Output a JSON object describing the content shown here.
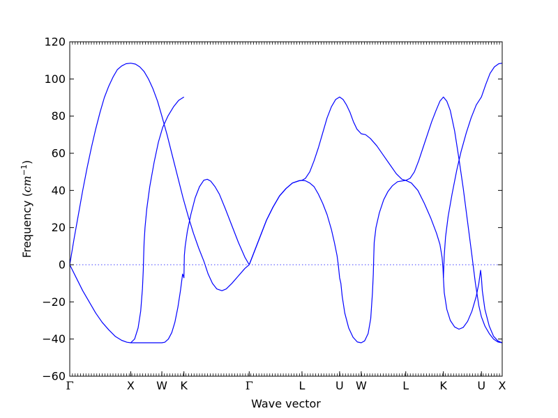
{
  "chart_data": {
    "type": "line",
    "title": "",
    "xlabel": "Wave vector",
    "ylabel": {
      "prefix": "Frequency (",
      "unit": "cm",
      "exponent": "−1",
      "suffix": ")"
    },
    "ylim": [
      -60,
      120
    ],
    "xlim": [
      0,
      1
    ],
    "yticks": [
      -60,
      -40,
      -20,
      0,
      20,
      40,
      60,
      80,
      100,
      120
    ],
    "ytick_labels": [
      "−60",
      "−40",
      "−20",
      "0",
      "20",
      "40",
      "60",
      "80",
      "100",
      "120"
    ],
    "xticks": [
      {
        "label": "Γ",
        "x": 0.0
      },
      {
        "label": "X",
        "x": 0.141
      },
      {
        "label": "W",
        "x": 0.213
      },
      {
        "label": "K",
        "x": 0.264
      },
      {
        "label": "Γ",
        "x": 0.415
      },
      {
        "label": "L",
        "x": 0.537
      },
      {
        "label": "U",
        "x": 0.624
      },
      {
        "label": "W",
        "x": 0.674
      },
      {
        "label": "L",
        "x": 0.777
      },
      {
        "label": "K",
        "x": 0.864
      },
      {
        "label": "U",
        "x": 0.952
      },
      {
        "label": "X",
        "x": 1.0
      }
    ],
    "zero_line": true,
    "grid": false,
    "line_color": "#0000ff",
    "zero_line_color": "#4040ff",
    "series": [
      {
        "values": [
          [
            0.0,
            0
          ],
          [
            0.01,
            14
          ],
          [
            0.02,
            27
          ],
          [
            0.03,
            40
          ],
          [
            0.04,
            52
          ],
          [
            0.05,
            63
          ],
          [
            0.06,
            73
          ],
          [
            0.07,
            82
          ],
          [
            0.08,
            90
          ],
          [
            0.09,
            96
          ],
          [
            0.1,
            101
          ],
          [
            0.11,
            105
          ],
          [
            0.12,
            107
          ],
          [
            0.13,
            108.2
          ],
          [
            0.141,
            108.5
          ],
          [
            0.152,
            108
          ],
          [
            0.162,
            106.5
          ],
          [
            0.172,
            104
          ],
          [
            0.182,
            100
          ],
          [
            0.192,
            95
          ],
          [
            0.203,
            88
          ],
          [
            0.213,
            80
          ],
          [
            0.225,
            70
          ],
          [
            0.237,
            59
          ],
          [
            0.25,
            47
          ],
          [
            0.262,
            36
          ],
          [
            0.274,
            26
          ],
          [
            0.286,
            17
          ],
          [
            0.298,
            9
          ],
          [
            0.31,
            2
          ],
          [
            0.32,
            -5
          ],
          [
            0.33,
            -10
          ],
          [
            0.34,
            -13
          ],
          [
            0.352,
            -14
          ],
          [
            0.362,
            -13
          ],
          [
            0.375,
            -10
          ],
          [
            0.39,
            -6
          ],
          [
            0.405,
            -2
          ],
          [
            0.415,
            0
          ],
          [
            0.425,
            6
          ],
          [
            0.435,
            12
          ],
          [
            0.445,
            18
          ],
          [
            0.455,
            24
          ],
          [
            0.47,
            31
          ],
          [
            0.485,
            37
          ],
          [
            0.5,
            41
          ],
          [
            0.515,
            44
          ],
          [
            0.53,
            45.2
          ],
          [
            0.537,
            45.4
          ],
          [
            0.545,
            46.5
          ],
          [
            0.555,
            50
          ],
          [
            0.565,
            56
          ],
          [
            0.575,
            63
          ],
          [
            0.585,
            71
          ],
          [
            0.595,
            79
          ],
          [
            0.605,
            85
          ],
          [
            0.615,
            89
          ],
          [
            0.624,
            90.3
          ],
          [
            0.632,
            89
          ],
          [
            0.64,
            86
          ],
          [
            0.648,
            82
          ],
          [
            0.656,
            77
          ],
          [
            0.664,
            73
          ],
          [
            0.674,
            70.5
          ],
          [
            0.684,
            70
          ],
          [
            0.695,
            68
          ],
          [
            0.71,
            64
          ],
          [
            0.725,
            59
          ],
          [
            0.74,
            54
          ],
          [
            0.755,
            49
          ],
          [
            0.768,
            46
          ],
          [
            0.777,
            45.4
          ],
          [
            0.787,
            46.5
          ],
          [
            0.797,
            50
          ],
          [
            0.807,
            56
          ],
          [
            0.817,
            63
          ],
          [
            0.827,
            70
          ],
          [
            0.837,
            77
          ],
          [
            0.847,
            83
          ],
          [
            0.856,
            88
          ],
          [
            0.864,
            90.3
          ],
          [
            0.872,
            88
          ],
          [
            0.88,
            83
          ],
          [
            0.89,
            72
          ],
          [
            0.9,
            57
          ],
          [
            0.91,
            41
          ],
          [
            0.92,
            23
          ],
          [
            0.93,
            5
          ],
          [
            0.938,
            -10
          ],
          [
            0.946,
            -22
          ],
          [
            0.952,
            -28
          ],
          [
            0.96,
            -33
          ],
          [
            0.97,
            -37
          ],
          [
            0.98,
            -40
          ],
          [
            0.99,
            -41.6
          ],
          [
            1.0,
            -42
          ]
        ]
      },
      {
        "values": [
          [
            0.0,
            0
          ],
          [
            0.015,
            -7
          ],
          [
            0.03,
            -14
          ],
          [
            0.045,
            -20
          ],
          [
            0.06,
            -26
          ],
          [
            0.075,
            -31
          ],
          [
            0.09,
            -35
          ],
          [
            0.105,
            -38.5
          ],
          [
            0.12,
            -40.7
          ],
          [
            0.132,
            -41.7
          ],
          [
            0.141,
            -42
          ],
          [
            0.16,
            -42
          ],
          [
            0.18,
            -42
          ],
          [
            0.2,
            -42
          ],
          [
            0.213,
            -42
          ],
          [
            0.22,
            -41.7
          ],
          [
            0.228,
            -40
          ],
          [
            0.236,
            -36.5
          ],
          [
            0.243,
            -31
          ],
          [
            0.25,
            -23
          ],
          [
            0.256,
            -14
          ],
          [
            0.261,
            -5
          ],
          [
            0.264,
            -7
          ],
          [
            0.265,
            5
          ],
          [
            0.267,
            10
          ],
          [
            0.272,
            18
          ],
          [
            0.28,
            27
          ],
          [
            0.29,
            36
          ],
          [
            0.3,
            42
          ],
          [
            0.31,
            45.5
          ],
          [
            0.318,
            46
          ],
          [
            0.326,
            45
          ],
          [
            0.336,
            42
          ],
          [
            0.346,
            38
          ],
          [
            0.36,
            30
          ],
          [
            0.375,
            21
          ],
          [
            0.39,
            12
          ],
          [
            0.405,
            4
          ],
          [
            0.415,
            0
          ],
          [
            0.425,
            6
          ],
          [
            0.435,
            12
          ],
          [
            0.445,
            18
          ],
          [
            0.455,
            24
          ],
          [
            0.47,
            31
          ],
          [
            0.485,
            37
          ],
          [
            0.5,
            41
          ],
          [
            0.515,
            44
          ],
          [
            0.53,
            45.2
          ],
          [
            0.537,
            45.4
          ],
          [
            0.545,
            45.2
          ],
          [
            0.555,
            44
          ],
          [
            0.565,
            42
          ],
          [
            0.575,
            38
          ],
          [
            0.585,
            33
          ],
          [
            0.595,
            27
          ],
          [
            0.605,
            19
          ],
          [
            0.612,
            12
          ],
          [
            0.618,
            5
          ],
          [
            0.621,
            0
          ],
          [
            0.624,
            -7
          ],
          [
            0.627,
            -10
          ],
          [
            0.63,
            -17
          ],
          [
            0.636,
            -26
          ],
          [
            0.645,
            -34
          ],
          [
            0.655,
            -39
          ],
          [
            0.665,
            -41.6
          ],
          [
            0.674,
            -42
          ],
          [
            0.682,
            -41
          ],
          [
            0.69,
            -37
          ],
          [
            0.696,
            -29
          ],
          [
            0.7,
            -15
          ],
          [
            0.702,
            -5
          ],
          [
            0.703,
            5
          ],
          [
            0.704,
            12
          ],
          [
            0.708,
            20
          ],
          [
            0.716,
            28
          ],
          [
            0.726,
            35
          ],
          [
            0.736,
            39.5
          ],
          [
            0.746,
            42.5
          ],
          [
            0.758,
            44.7
          ],
          [
            0.777,
            45.4
          ],
          [
            0.79,
            44
          ],
          [
            0.805,
            40
          ],
          [
            0.82,
            33
          ],
          [
            0.835,
            25
          ],
          [
            0.848,
            17
          ],
          [
            0.856,
            11
          ],
          [
            0.861,
            4
          ],
          [
            0.863,
            -2
          ],
          [
            0.864,
            -7
          ],
          [
            0.866,
            -15
          ],
          [
            0.872,
            -24
          ],
          [
            0.88,
            -30
          ],
          [
            0.89,
            -33.5
          ],
          [
            0.9,
            -34.7
          ],
          [
            0.91,
            -33.7
          ],
          [
            0.92,
            -30.5
          ],
          [
            0.93,
            -25
          ],
          [
            0.94,
            -17
          ],
          [
            0.946,
            -10
          ],
          [
            0.95,
            -3
          ],
          [
            0.952,
            -7
          ],
          [
            0.954,
            -14
          ],
          [
            0.96,
            -24
          ],
          [
            0.97,
            -33
          ],
          [
            0.98,
            -38.5
          ],
          [
            0.99,
            -41
          ],
          [
            1.0,
            -42
          ]
        ]
      },
      {
        "values": [
          [
            0.141,
            -42
          ],
          [
            0.15,
            -40
          ],
          [
            0.158,
            -34
          ],
          [
            0.164,
            -25
          ],
          [
            0.168,
            -13
          ],
          [
            0.17,
            -3
          ],
          [
            0.171,
            5
          ],
          [
            0.172,
            12
          ],
          [
            0.174,
            20
          ],
          [
            0.178,
            30
          ],
          [
            0.185,
            42
          ],
          [
            0.195,
            55
          ],
          [
            0.205,
            66
          ],
          [
            0.215,
            74
          ],
          [
            0.227,
            80
          ],
          [
            0.24,
            85
          ],
          [
            0.252,
            88.5
          ],
          [
            0.264,
            90.3
          ]
        ]
      },
      {
        "values": [
          [
            0.864,
            -7
          ],
          [
            0.866,
            5
          ],
          [
            0.869,
            15
          ],
          [
            0.875,
            26
          ],
          [
            0.884,
            38
          ],
          [
            0.895,
            51
          ],
          [
            0.905,
            61
          ],
          [
            0.917,
            71
          ],
          [
            0.928,
            79
          ],
          [
            0.94,
            86
          ],
          [
            0.952,
            90.3
          ],
          [
            0.962,
            97
          ],
          [
            0.972,
            103
          ],
          [
            0.982,
            106.5
          ],
          [
            0.992,
            108.2
          ],
          [
            1.0,
            108.5
          ]
        ]
      }
    ]
  }
}
